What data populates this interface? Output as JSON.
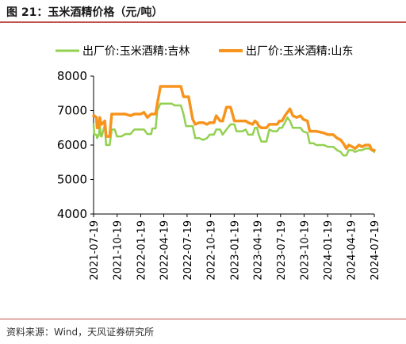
{
  "title": "图 21：玉米酒精价格（元/吨）",
  "source": "资料来源：Wind，天风证券研究所",
  "chart_data": {
    "type": "line",
    "ylim": [
      4000,
      8000
    ],
    "yticks": [
      4000,
      5000,
      6000,
      7000,
      8000
    ],
    "x_range": [
      "2021-07-19",
      "2024-07-19"
    ],
    "xticks": [
      "2021-07-19",
      "2021-10-19",
      "2022-01-19",
      "2022-04-19",
      "2022-07-19",
      "2022-10-19",
      "2023-01-19",
      "2023-04-19",
      "2023-07-19",
      "2023-10-19",
      "2024-01-19",
      "2024-04-19",
      "2024-07-19"
    ],
    "legend_position": "top",
    "series": [
      {
        "name": "出厂价:玉米酒精:吉林",
        "color": "#92d050",
        "points": [
          [
            "2021-07-19",
            6600
          ],
          [
            "2021-07-22",
            6300
          ],
          [
            "2021-07-30",
            6300
          ],
          [
            "2021-08-02",
            6200
          ],
          [
            "2021-08-09",
            6300
          ],
          [
            "2021-08-12",
            6600
          ],
          [
            "2021-08-17",
            6250
          ],
          [
            "2021-08-20",
            6250
          ],
          [
            "2021-09-01",
            6600
          ],
          [
            "2021-09-06",
            6000
          ],
          [
            "2021-09-20",
            6000
          ],
          [
            "2021-09-28",
            6450
          ],
          [
            "2021-10-10",
            6450
          ],
          [
            "2021-10-18",
            6250
          ],
          [
            "2021-11-05",
            6250
          ],
          [
            "2021-11-20",
            6320
          ],
          [
            "2021-12-10",
            6320
          ],
          [
            "2021-12-25",
            6450
          ],
          [
            "2022-01-19",
            6450
          ],
          [
            "2022-02-01",
            6450
          ],
          [
            "2022-02-14",
            6320
          ],
          [
            "2022-03-01",
            6320
          ],
          [
            "2022-03-05",
            6480
          ],
          [
            "2022-03-18",
            6480
          ],
          [
            "2022-03-25",
            7000
          ],
          [
            "2022-04-06",
            7200
          ],
          [
            "2022-05-20",
            7200
          ],
          [
            "2022-06-01",
            7150
          ],
          [
            "2022-06-25",
            7150
          ],
          [
            "2022-07-05",
            6900
          ],
          [
            "2022-07-15",
            6550
          ],
          [
            "2022-07-25",
            6550
          ],
          [
            "2022-08-10",
            6550
          ],
          [
            "2022-08-20",
            6200
          ],
          [
            "2022-09-05",
            6200
          ],
          [
            "2022-09-20",
            6150
          ],
          [
            "2022-10-05",
            6200
          ],
          [
            "2022-10-15",
            6300
          ],
          [
            "2022-11-01",
            6300
          ],
          [
            "2022-11-10",
            6450
          ],
          [
            "2022-11-25",
            6450
          ],
          [
            "2022-12-05",
            6300
          ],
          [
            "2022-12-20",
            6450
          ],
          [
            "2023-01-05",
            6600
          ],
          [
            "2023-01-20",
            6600
          ],
          [
            "2023-01-28",
            6400
          ],
          [
            "2023-02-20",
            6400
          ],
          [
            "2023-03-05",
            6450
          ],
          [
            "2023-03-15",
            6300
          ],
          [
            "2023-04-01",
            6300
          ],
          [
            "2023-04-10",
            6500
          ],
          [
            "2023-04-18",
            6500
          ],
          [
            "2023-04-25",
            6300
          ],
          [
            "2023-05-05",
            6100
          ],
          [
            "2023-05-25",
            6100
          ],
          [
            "2023-06-05",
            6450
          ],
          [
            "2023-06-20",
            6400
          ],
          [
            "2023-07-05",
            6400
          ],
          [
            "2023-07-15",
            6500
          ],
          [
            "2023-07-25",
            6500
          ],
          [
            "2023-08-05",
            6650
          ],
          [
            "2023-08-15",
            6800
          ],
          [
            "2023-08-25",
            6700
          ],
          [
            "2023-09-05",
            6500
          ],
          [
            "2023-09-20",
            6500
          ],
          [
            "2023-10-05",
            6500
          ],
          [
            "2023-10-15",
            6400
          ],
          [
            "2023-11-01",
            6350
          ],
          [
            "2023-11-10",
            6050
          ],
          [
            "2023-11-25",
            6050
          ],
          [
            "2023-12-05",
            6000
          ],
          [
            "2024-01-05",
            6000
          ],
          [
            "2024-01-20",
            5950
          ],
          [
            "2024-02-10",
            5950
          ],
          [
            "2024-02-25",
            5850
          ],
          [
            "2024-03-10",
            5800
          ],
          [
            "2024-03-20",
            5700
          ],
          [
            "2024-04-01",
            5700
          ],
          [
            "2024-04-10",
            5850
          ],
          [
            "2024-04-25",
            5850
          ],
          [
            "2024-05-05",
            5800
          ],
          [
            "2024-05-20",
            5850
          ],
          [
            "2024-06-01",
            5850
          ],
          [
            "2024-06-15",
            5900
          ],
          [
            "2024-06-30",
            5900
          ],
          [
            "2024-07-10",
            5850
          ],
          [
            "2024-07-19",
            5800
          ]
        ]
      },
      {
        "name": "出厂价:玉米酒精:山东",
        "color": "#f7941d",
        "points": [
          [
            "2021-07-19",
            6850
          ],
          [
            "2021-07-22",
            6850
          ],
          [
            "2021-07-30",
            6800
          ],
          [
            "2021-08-02",
            6500
          ],
          [
            "2021-08-09",
            6500
          ],
          [
            "2021-08-12",
            6800
          ],
          [
            "2021-08-17",
            6600
          ],
          [
            "2021-08-20",
            6600
          ],
          [
            "2021-09-01",
            6700
          ],
          [
            "2021-09-06",
            6250
          ],
          [
            "2021-09-20",
            6250
          ],
          [
            "2021-09-28",
            6900
          ],
          [
            "2021-10-18",
            6900
          ],
          [
            "2021-11-05",
            6900
          ],
          [
            "2021-11-20",
            6900
          ],
          [
            "2021-12-10",
            6850
          ],
          [
            "2021-12-25",
            6900
          ],
          [
            "2022-01-19",
            6900
          ],
          [
            "2022-02-01",
            6950
          ],
          [
            "2022-02-14",
            6800
          ],
          [
            "2022-03-01",
            6900
          ],
          [
            "2022-03-18",
            6900
          ],
          [
            "2022-03-25",
            7200
          ],
          [
            "2022-04-06",
            7700
          ],
          [
            "2022-05-20",
            7700
          ],
          [
            "2022-06-01",
            7700
          ],
          [
            "2022-06-25",
            7700
          ],
          [
            "2022-07-05",
            7400
          ],
          [
            "2022-07-25",
            7400
          ],
          [
            "2022-08-10",
            6750
          ],
          [
            "2022-08-20",
            6600
          ],
          [
            "2022-09-05",
            6650
          ],
          [
            "2022-09-20",
            6650
          ],
          [
            "2022-10-05",
            6600
          ],
          [
            "2022-10-15",
            6650
          ],
          [
            "2022-11-01",
            6650
          ],
          [
            "2022-11-10",
            6850
          ],
          [
            "2022-11-25",
            6700
          ],
          [
            "2022-12-05",
            6700
          ],
          [
            "2022-12-20",
            7100
          ],
          [
            "2023-01-05",
            7100
          ],
          [
            "2023-01-20",
            6700
          ],
          [
            "2023-01-28",
            6700
          ],
          [
            "2023-02-20",
            6700
          ],
          [
            "2023-03-05",
            6700
          ],
          [
            "2023-03-15",
            6650
          ],
          [
            "2023-04-01",
            6600
          ],
          [
            "2023-04-10",
            6700
          ],
          [
            "2023-04-18",
            6650
          ],
          [
            "2023-04-25",
            6550
          ],
          [
            "2023-05-05",
            6500
          ],
          [
            "2023-05-25",
            6500
          ],
          [
            "2023-06-05",
            6600
          ],
          [
            "2023-06-20",
            6600
          ],
          [
            "2023-07-05",
            6600
          ],
          [
            "2023-07-15",
            6700
          ],
          [
            "2023-07-25",
            6700
          ],
          [
            "2023-08-05",
            6850
          ],
          [
            "2023-08-15",
            6950
          ],
          [
            "2023-08-25",
            7050
          ],
          [
            "2023-09-05",
            6850
          ],
          [
            "2023-09-20",
            6800
          ],
          [
            "2023-10-05",
            6850
          ],
          [
            "2023-10-15",
            6750
          ],
          [
            "2023-11-01",
            6700
          ],
          [
            "2023-11-10",
            6400
          ],
          [
            "2023-11-25",
            6400
          ],
          [
            "2023-12-05",
            6400
          ],
          [
            "2024-01-05",
            6350
          ],
          [
            "2024-01-20",
            6300
          ],
          [
            "2024-02-10",
            6300
          ],
          [
            "2024-02-25",
            6200
          ],
          [
            "2024-03-10",
            6150
          ],
          [
            "2024-03-20",
            6050
          ],
          [
            "2024-04-01",
            5900
          ],
          [
            "2024-04-10",
            6000
          ],
          [
            "2024-04-25",
            5950
          ],
          [
            "2024-05-05",
            5900
          ],
          [
            "2024-05-20",
            6000
          ],
          [
            "2024-06-01",
            5950
          ],
          [
            "2024-06-15",
            6000
          ],
          [
            "2024-06-30",
            6000
          ],
          [
            "2024-07-10",
            5850
          ],
          [
            "2024-07-19",
            5850
          ]
        ]
      }
    ]
  }
}
